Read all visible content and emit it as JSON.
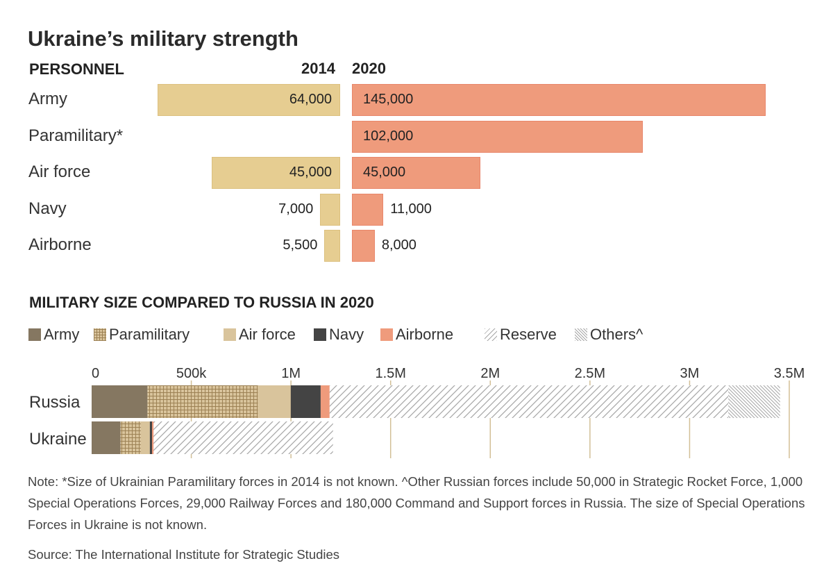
{
  "title": "Ukraine’s military strength",
  "personnel": {
    "heading": "PERSONNEL",
    "year_labels": [
      "2014",
      "2020"
    ],
    "rows": [
      {
        "label": "Army",
        "v2014": 64000,
        "v2014_label": "64,000",
        "v2020": 145000,
        "v2020_label": "145,000"
      },
      {
        "label": "Paramilitary*",
        "v2014": null,
        "v2014_label": "",
        "v2020": 102000,
        "v2020_label": "102,000"
      },
      {
        "label": "Air force",
        "v2014": 45000,
        "v2014_label": "45,000",
        "v2020": 45000,
        "v2020_label": "45,000"
      },
      {
        "label": "Navy",
        "v2014": 7000,
        "v2014_label": "7,000",
        "v2020": 11000,
        "v2020_label": "11,000"
      },
      {
        "label": "Airborne",
        "v2014": 5500,
        "v2014_label": "5,500",
        "v2020": 8000,
        "v2020_label": "8,000"
      }
    ]
  },
  "comparison": {
    "heading": "MILITARY SIZE COMPARED TO RUSSIA IN 2020",
    "legend": [
      {
        "label": "Army",
        "color": "#857761",
        "pattern": "solid"
      },
      {
        "label": "Paramilitary",
        "color": "#b89c6e",
        "pattern": "grid"
      },
      {
        "label": "Air force",
        "color": "#d9c49c",
        "pattern": "solid"
      },
      {
        "label": "Navy",
        "color": "#444444",
        "pattern": "solid"
      },
      {
        "label": "Airborne",
        "color": "#ef9b7c",
        "pattern": "solid"
      },
      {
        "label": "Reserve",
        "color": "#9a9a9a",
        "pattern": "diagonal"
      },
      {
        "label": "Others^",
        "color": "#9a9a9a",
        "pattern": "dense-diagonal"
      }
    ],
    "tick_labels": [
      "0",
      "500k",
      "1M",
      "1.5M",
      "2M",
      "2.5M",
      "3M",
      "3.5M"
    ]
  },
  "chart_data": [
    {
      "type": "bar",
      "orientation": "horizontal",
      "title": "PERSONNEL",
      "categories": [
        "Army",
        "Paramilitary*",
        "Air force",
        "Navy",
        "Airborne"
      ],
      "series": [
        {
          "name": "2014",
          "values": [
            64000,
            null,
            45000,
            7000,
            5500
          ]
        },
        {
          "name": "2020",
          "values": [
            145000,
            102000,
            45000,
            11000,
            8000
          ]
        }
      ]
    },
    {
      "type": "bar",
      "orientation": "horizontal",
      "stacked": true,
      "title": "MILITARY SIZE COMPARED TO RUSSIA IN 2020",
      "categories": [
        "Russia",
        "Ukraine"
      ],
      "series": [
        {
          "name": "Army",
          "values": [
            280000,
            145000
          ]
        },
        {
          "name": "Paramilitary",
          "values": [
            554000,
            102000
          ]
        },
        {
          "name": "Air force",
          "values": [
            165000,
            45000
          ]
        },
        {
          "name": "Navy",
          "values": [
            150000,
            11000
          ]
        },
        {
          "name": "Airborne",
          "values": [
            45000,
            8000
          ]
        },
        {
          "name": "Reserve",
          "values": [
            2000000,
            900000
          ]
        },
        {
          "name": "Others^",
          "values": [
            260000,
            0
          ]
        }
      ],
      "xlim": [
        0,
        3500000
      ],
      "xticks": [
        0,
        500000,
        1000000,
        1500000,
        2000000,
        2500000,
        3000000,
        3500000
      ]
    }
  ],
  "note": "Note: *Size of Ukrainian Paramilitary forces in 2014 is not known. ^Other Russian forces include 50,000 in Strategic Rocket Force, 1,000 Special Operations Forces, 29,000 Railway Forces and 180,000 Command and Support forces in Russia. The size of Special Operations Forces in Ukraine is not known.",
  "source": "Source: The International Institute for Strategic Studies"
}
